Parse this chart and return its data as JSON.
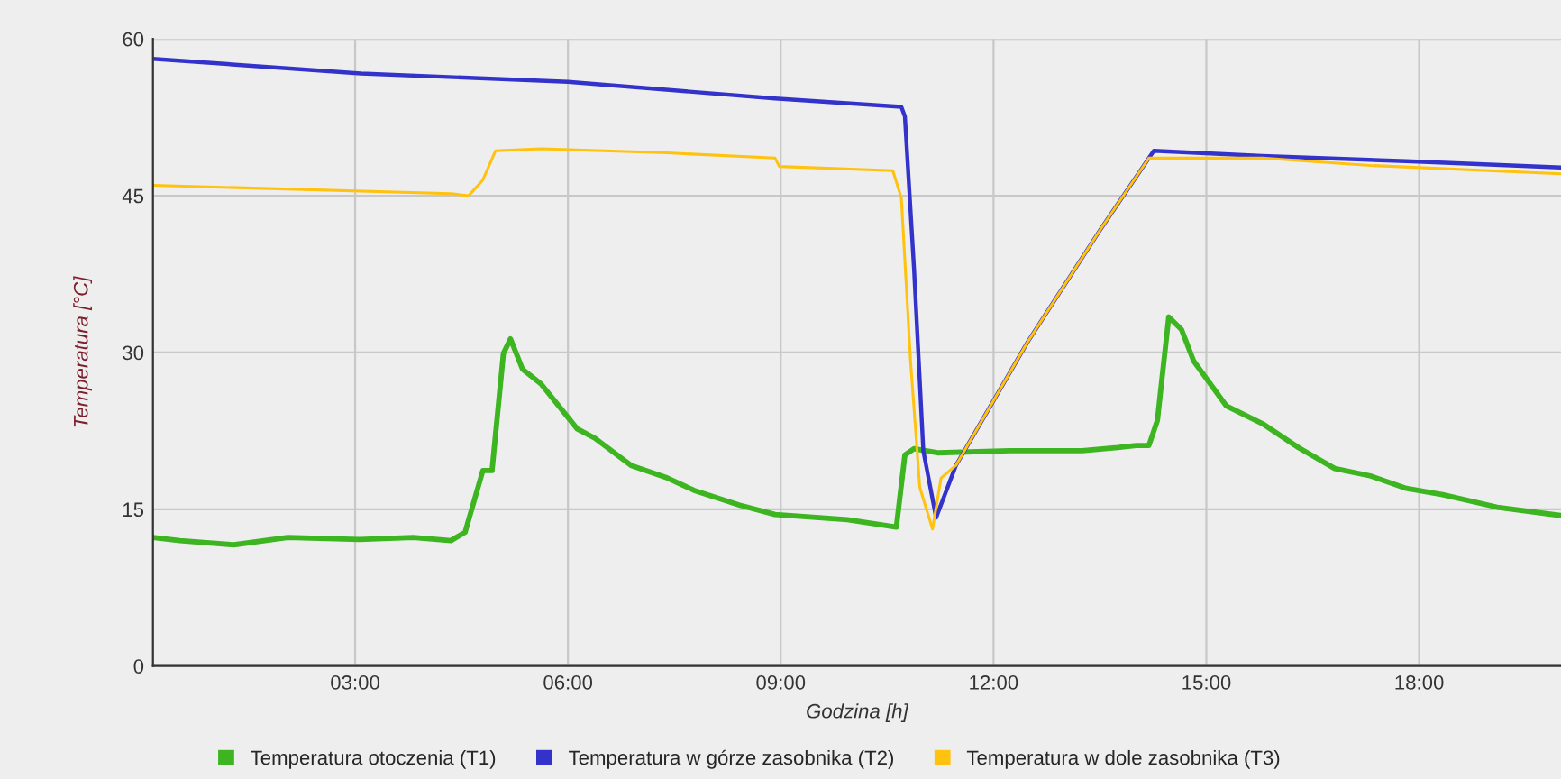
{
  "chart_data": {
    "type": "line",
    "xlabel": "Godzina [h]",
    "ylabel": "Temperatura [°C]",
    "xlim": [
      0.15,
      20.0
    ],
    "xticks": [
      {
        "value": 3,
        "label": "03:00"
      },
      {
        "value": 6,
        "label": "06:00"
      },
      {
        "value": 9,
        "label": "09:00"
      },
      {
        "value": 12,
        "label": "12:00"
      },
      {
        "value": 15,
        "label": "15:00"
      },
      {
        "value": 18,
        "label": "18:00"
      }
    ],
    "ylim": [
      0,
      60
    ],
    "yticks": [
      0,
      15,
      30,
      45,
      60
    ],
    "grid": true,
    "legend": "bottom",
    "series": [
      {
        "name": "Temperatura otoczenia (T1)",
        "color": "#3cb521",
        "x": [
          0.15,
          0.53,
          1.29,
          2.05,
          3.06,
          3.82,
          4.35,
          4.55,
          4.8,
          4.93,
          5.09,
          5.19,
          5.36,
          5.62,
          5.87,
          6.13,
          6.38,
          6.89,
          7.4,
          7.78,
          8.42,
          8.92,
          9.94,
          10.63,
          10.75,
          10.88,
          11.21,
          12.23,
          13.25,
          13.75,
          14.01,
          14.19,
          14.31,
          14.47,
          14.65,
          14.82,
          15.28,
          15.79,
          16.3,
          16.81,
          17.31,
          17.82,
          18.33,
          19.1,
          20.0
        ],
        "values": [
          12.3,
          12.0,
          11.6,
          12.3,
          12.1,
          12.3,
          12.0,
          12.8,
          18.7,
          18.7,
          29.9,
          31.3,
          28.4,
          27.0,
          24.9,
          22.7,
          21.8,
          19.2,
          18.0,
          16.8,
          15.4,
          14.5,
          14.0,
          13.3,
          20.2,
          20.8,
          20.4,
          20.6,
          20.6,
          20.9,
          21.1,
          21.1,
          23.5,
          33.4,
          32.2,
          29.2,
          24.9,
          23.2,
          20.9,
          18.9,
          18.2,
          17.0,
          16.4,
          15.2,
          14.4
        ]
      },
      {
        "name": "Temperatura w górze zasobnika (T2)",
        "color": "#3333cc",
        "x": [
          0.15,
          3.08,
          6.0,
          8.92,
          10.7,
          10.75,
          10.88,
          11.01,
          11.19,
          11.47,
          12.48,
          13.5,
          14.26,
          15.79,
          17.82,
          20.0
        ],
        "values": [
          58.1,
          56.7,
          55.9,
          54.3,
          53.5,
          52.6,
          37.9,
          20.6,
          14.2,
          19.2,
          31.0,
          41.7,
          49.3,
          48.8,
          48.3,
          47.7
        ]
      },
      {
        "name": "Temperatura w dole zasobnika (T3)",
        "color": "#ffc20e",
        "x": [
          0.15,
          4.35,
          4.6,
          4.8,
          4.98,
          5.62,
          7.4,
          8.92,
          8.98,
          10.58,
          10.7,
          10.83,
          10.96,
          11.14,
          11.26,
          11.47,
          12.48,
          13.5,
          14.19,
          15.79,
          17.31,
          20.0
        ],
        "values": [
          46.0,
          45.2,
          45.0,
          46.5,
          49.3,
          49.5,
          49.1,
          48.6,
          47.8,
          47.4,
          44.8,
          29.2,
          17.1,
          13.1,
          18.0,
          19.2,
          31.0,
          41.7,
          48.6,
          48.6,
          47.9,
          47.1
        ]
      }
    ]
  }
}
